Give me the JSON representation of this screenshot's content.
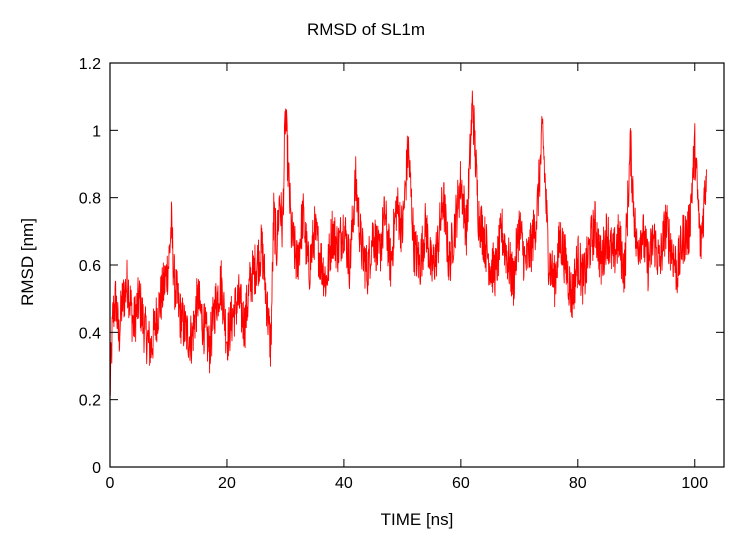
{
  "chart_data": {
    "type": "line",
    "title": "RMSD of SL1m",
    "xlabel": "TIME [ns]",
    "ylabel": "RMSD [nm]",
    "xlim": [
      0,
      105
    ],
    "ylim": [
      0,
      1.2
    ],
    "xticks": [
      0,
      20,
      40,
      60,
      80,
      100
    ],
    "yticks": [
      0,
      0.2,
      0.4,
      0.6,
      0.8,
      1,
      1.2
    ],
    "grid": false,
    "legend": "none",
    "series": [
      {
        "color": "#ff0000",
        "x": [
          0,
          0.5,
          1,
          1.5,
          2,
          3,
          4,
          5,
          6,
          7,
          8,
          9,
          10,
          10.5,
          11,
          12,
          13,
          14,
          15,
          16,
          17,
          18,
          19,
          20,
          21,
          22,
          23,
          24,
          25,
          26,
          27,
          27.5,
          28,
          28.5,
          29,
          29.5,
          30,
          31,
          32,
          33,
          34,
          35,
          36,
          37,
          38,
          39,
          40,
          41,
          42,
          43,
          44,
          45,
          46,
          47,
          48,
          49,
          50,
          51,
          52,
          53,
          54,
          55,
          56,
          57,
          58,
          59,
          60,
          61,
          62,
          63,
          64,
          65,
          66,
          67,
          68,
          69,
          70,
          71,
          72,
          73,
          74,
          75,
          76,
          77,
          78,
          79,
          80,
          81,
          82,
          83,
          84,
          85,
          86,
          87,
          88,
          89,
          90,
          91,
          92,
          93,
          94,
          95,
          96,
          97,
          98,
          99,
          100,
          101,
          102
        ],
        "y": [
          0.22,
          0.45,
          0.5,
          0.38,
          0.48,
          0.55,
          0.42,
          0.5,
          0.4,
          0.35,
          0.45,
          0.52,
          0.6,
          0.72,
          0.55,
          0.45,
          0.4,
          0.38,
          0.5,
          0.42,
          0.35,
          0.48,
          0.55,
          0.38,
          0.45,
          0.5,
          0.42,
          0.55,
          0.6,
          0.65,
          0.45,
          0.35,
          0.75,
          0.65,
          0.8,
          0.7,
          1.05,
          0.7,
          0.6,
          0.75,
          0.58,
          0.7,
          0.62,
          0.55,
          0.7,
          0.65,
          0.72,
          0.6,
          0.85,
          0.65,
          0.58,
          0.7,
          0.62,
          0.75,
          0.6,
          0.78,
          0.7,
          0.95,
          0.65,
          0.6,
          0.72,
          0.58,
          0.65,
          0.8,
          0.6,
          0.72,
          0.85,
          0.7,
          1.09,
          0.75,
          0.68,
          0.6,
          0.58,
          0.7,
          0.62,
          0.55,
          0.72,
          0.6,
          0.65,
          0.75,
          1.0,
          0.62,
          0.55,
          0.68,
          0.6,
          0.5,
          0.62,
          0.55,
          0.65,
          0.72,
          0.6,
          0.7,
          0.62,
          0.68,
          0.58,
          0.95,
          0.65,
          0.7,
          0.6,
          0.68,
          0.6,
          0.72,
          0.65,
          0.58,
          0.68,
          0.7,
          0.95,
          0.65,
          0.88
        ]
      }
    ]
  }
}
